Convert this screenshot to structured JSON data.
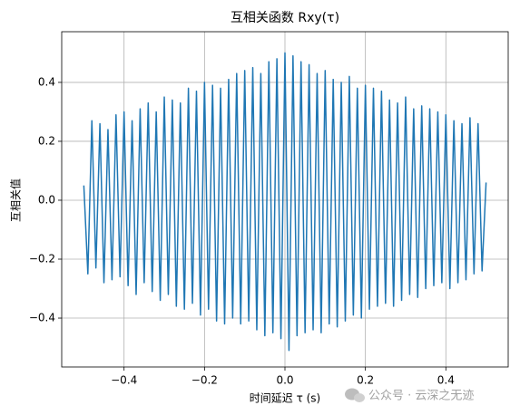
{
  "chart_data": {
    "type": "line",
    "title": "互相关函数 Rxy(τ)",
    "x_label": "时间延迟 τ (s)",
    "y_label": "互相关值",
    "annotation": "公众号 · 云深之无迹",
    "color": "#1f77b4",
    "grid": true,
    "xlim": [
      -0.555,
      0.555
    ],
    "ylim": [
      -0.566,
      0.572
    ],
    "xticks": [
      {
        "value": -0.4,
        "label": "−0.4"
      },
      {
        "value": -0.2,
        "label": "−0.2"
      },
      {
        "value": 0,
        "label": "0.0"
      },
      {
        "value": 0.2,
        "label": "0.2"
      },
      {
        "value": 0.4,
        "label": "0.4"
      }
    ],
    "yticks": [
      {
        "value": -0.4,
        "label": "−0.4"
      },
      {
        "value": -0.2,
        "label": "−0.2"
      },
      {
        "value": 0,
        "label": "0.0"
      },
      {
        "value": 0.2,
        "label": "0.2"
      },
      {
        "value": 0.4,
        "label": "0.4"
      }
    ],
    "x": [
      -0.5,
      -0.49,
      -0.48,
      -0.47,
      -0.46,
      -0.45,
      -0.44,
      -0.43,
      -0.42,
      -0.41,
      -0.4,
      -0.39,
      -0.38,
      -0.37,
      -0.36,
      -0.35,
      -0.34,
      -0.33,
      -0.32,
      -0.31,
      -0.3,
      -0.29,
      -0.28,
      -0.27,
      -0.26,
      -0.25,
      -0.24,
      -0.23,
      -0.22,
      -0.21,
      -0.2,
      -0.19,
      -0.18,
      -0.17,
      -0.16,
      -0.15,
      -0.14,
      -0.13,
      -0.12,
      -0.11,
      -0.1,
      -0.09,
      -0.08,
      -0.07,
      -0.06,
      -0.05,
      -0.04,
      -0.03,
      -0.02,
      -0.01,
      0,
      0.01,
      0.02,
      0.03,
      0.04,
      0.05,
      0.06,
      0.07,
      0.08,
      0.09,
      0.1,
      0.11,
      0.12,
      0.13,
      0.14,
      0.15,
      0.16,
      0.17,
      0.18,
      0.19,
      0.2,
      0.21,
      0.22,
      0.23,
      0.24,
      0.25,
      0.26,
      0.27,
      0.28,
      0.29,
      0.3,
      0.31,
      0.32,
      0.33,
      0.34,
      0.35,
      0.36,
      0.37,
      0.38,
      0.39,
      0.4,
      0.41,
      0.42,
      0.43,
      0.44,
      0.45,
      0.46,
      0.47,
      0.48,
      0.49,
      0.5
    ],
    "values": [
      0.05,
      -0.25,
      0.27,
      -0.23,
      0.26,
      -0.28,
      0.24,
      -0.27,
      0.29,
      -0.26,
      0.3,
      -0.29,
      0.27,
      -0.32,
      0.31,
      -0.28,
      0.33,
      -0.31,
      0.3,
      -0.34,
      0.35,
      -0.32,
      0.34,
      -0.36,
      0.33,
      -0.37,
      0.38,
      -0.35,
      0.37,
      -0.39,
      0.4,
      -0.37,
      0.39,
      -0.41,
      0.38,
      -0.42,
      0.41,
      -0.4,
      0.43,
      -0.42,
      0.44,
      -0.41,
      0.45,
      -0.44,
      0.43,
      -0.46,
      0.47,
      -0.45,
      0.48,
      -0.47,
      0.5,
      -0.51,
      0.49,
      -0.46,
      0.47,
      -0.45,
      0.46,
      -0.44,
      0.43,
      -0.45,
      0.44,
      -0.42,
      0.41,
      -0.43,
      0.4,
      -0.41,
      0.42,
      -0.39,
      0.38,
      -0.4,
      0.39,
      -0.37,
      0.38,
      -0.36,
      0.37,
      -0.35,
      0.34,
      -0.36,
      0.33,
      -0.34,
      0.35,
      -0.32,
      0.31,
      -0.33,
      0.32,
      -0.3,
      0.31,
      -0.29,
      0.3,
      -0.28,
      0.29,
      -0.3,
      0.27,
      -0.28,
      0.26,
      -0.27,
      0.28,
      -0.25,
      0.26,
      -0.24,
      0.06
    ]
  }
}
